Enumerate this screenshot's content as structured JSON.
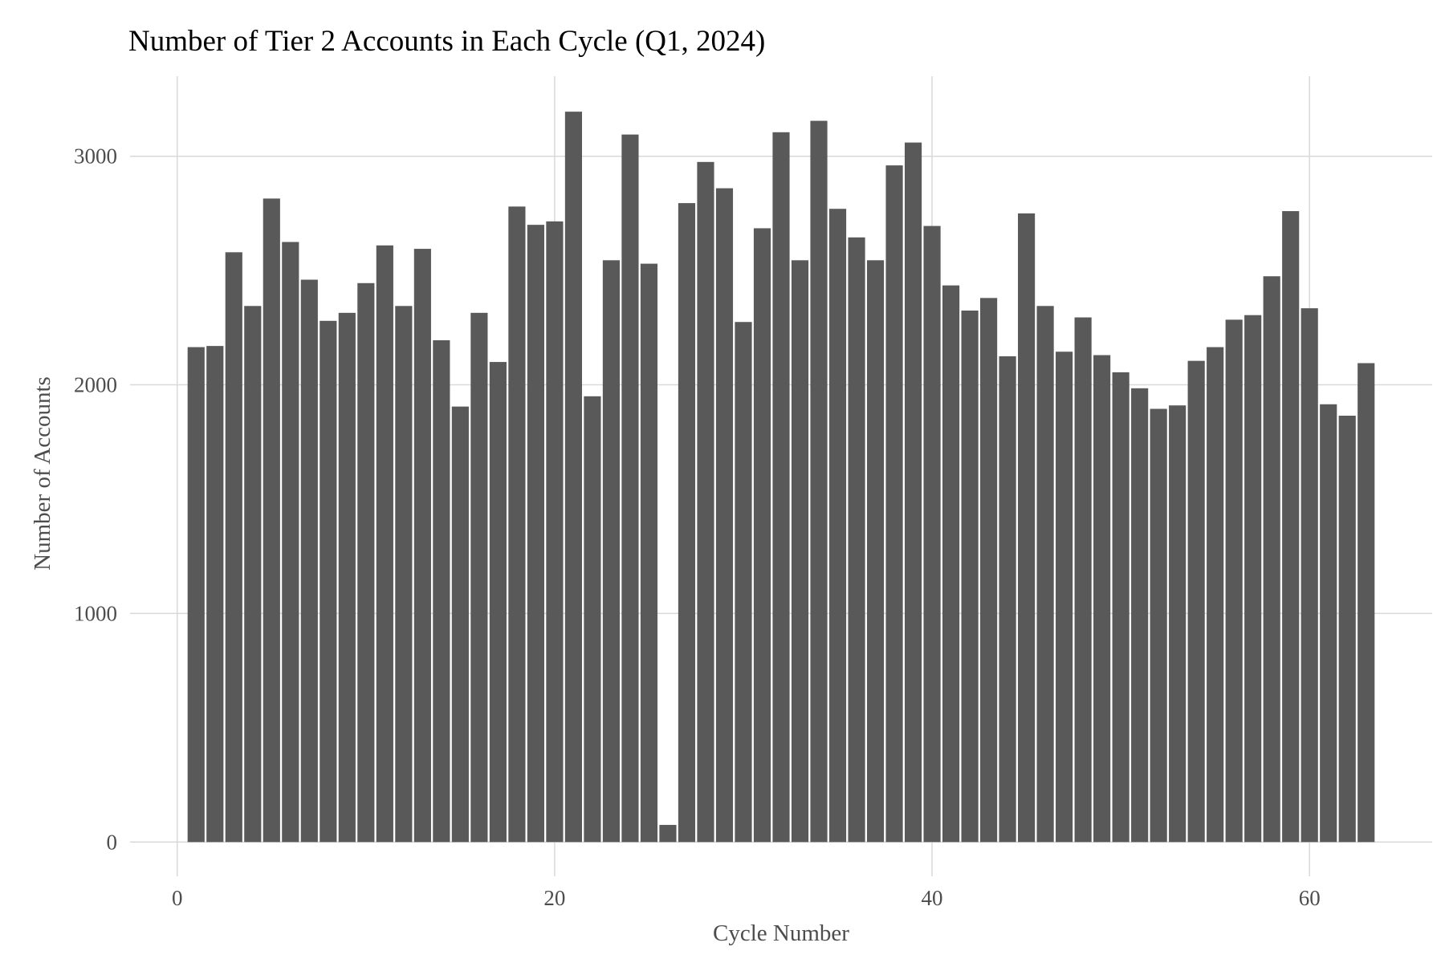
{
  "chart_data": {
    "type": "bar",
    "title": "Number of Tier 2 Accounts in Each Cycle (Q1, 2024)",
    "xlabel": "Cycle Number",
    "ylabel": "Number of Accounts",
    "xlim": [
      -2.5,
      66.5
    ],
    "ylim": [
      -150,
      3350
    ],
    "x_ticks": [
      0,
      20,
      40,
      60
    ],
    "y_ticks": [
      0,
      1000,
      2000,
      3000
    ],
    "grid": true,
    "bar_color": "#595959",
    "x": [
      1,
      2,
      3,
      4,
      5,
      6,
      7,
      8,
      9,
      10,
      11,
      12,
      13,
      14,
      15,
      16,
      17,
      18,
      19,
      20,
      21,
      22,
      23,
      24,
      25,
      26,
      27,
      28,
      29,
      30,
      31,
      32,
      33,
      34,
      35,
      36,
      37,
      38,
      39,
      40,
      41,
      42,
      43,
      44,
      45,
      46,
      47,
      48,
      49,
      50,
      51,
      52,
      53,
      54,
      55,
      56,
      57,
      58,
      59,
      60,
      61,
      62,
      63
    ],
    "values": [
      2165,
      2170,
      2580,
      2345,
      2815,
      2625,
      2460,
      2280,
      2315,
      2445,
      2610,
      2345,
      2595,
      2195,
      1905,
      2315,
      2100,
      2780,
      2700,
      2715,
      3195,
      1950,
      2545,
      3095,
      2530,
      75,
      2795,
      2975,
      2860,
      2275,
      2685,
      3105,
      2545,
      3155,
      2770,
      2645,
      2545,
      2960,
      3060,
      2695,
      2435,
      2325,
      2380,
      2125,
      2750,
      2345,
      2145,
      2295,
      2130,
      2055,
      1985,
      1895,
      1910,
      2105,
      2165,
      2285,
      2305,
      2475,
      2760,
      2335,
      1915,
      1865,
      2095
    ]
  }
}
